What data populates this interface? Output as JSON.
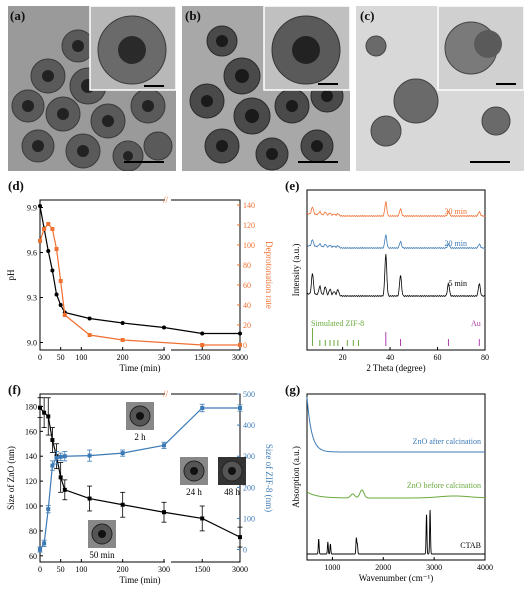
{
  "panel_labels": {
    "a": "(a)",
    "b": "(b)",
    "c": "(c)",
    "d": "(d)",
    "e": "(e)",
    "f": "(f)",
    "g": "(g)"
  },
  "chart_data": [
    {
      "id": "d",
      "type": "line",
      "xlabel": "Time (min)",
      "ylabel": "pH",
      "y2label": "Deprotonation rate",
      "xticks": [
        "0",
        "50",
        "100",
        "200",
        "300",
        "1500",
        "3000"
      ],
      "yticks": [
        "9.0",
        "9.3",
        "9.6",
        "9.9"
      ],
      "y2ticks": [
        "0",
        "20",
        "40",
        "60",
        "80",
        "100",
        "120",
        "140"
      ],
      "series": [
        {
          "axis": "left",
          "color": "#000000",
          "x": [
            0,
            10,
            20,
            30,
            40,
            50,
            60,
            120,
            200,
            300,
            1500,
            3000
          ],
          "y": [
            9.91,
            9.76,
            9.61,
            9.48,
            9.32,
            9.25,
            9.2,
            9.16,
            9.13,
            9.1,
            9.06,
            9.06
          ]
        },
        {
          "axis": "right",
          "color": "#f07030",
          "x": [
            0,
            10,
            20,
            30,
            40,
            50,
            60,
            120,
            200,
            1500,
            3000
          ],
          "y": [
            104,
            116,
            121,
            116,
            96,
            64,
            30,
            10,
            5,
            0,
            0
          ]
        }
      ]
    },
    {
      "id": "e",
      "type": "line",
      "xlabel": "2 Theta (degree)",
      "ylabel": "Intensity (a.u.)",
      "xticks": [
        "20",
        "40",
        "60",
        "80"
      ],
      "xlim": [
        5,
        80
      ],
      "series": [
        {
          "name": "30 min",
          "color": "#f07030"
        },
        {
          "name": "20 min",
          "color": "#3c7ab5"
        },
        {
          "name": "5 min",
          "color": "#000000"
        },
        {
          "name": "Simulated ZIF-8",
          "color": "#6aaa3c"
        },
        {
          "name": "Au",
          "color": "#b040b0"
        }
      ]
    },
    {
      "id": "f",
      "type": "line",
      "xlabel": "Time (min)",
      "ylabel": "Size of ZnO (nm)",
      "y2label": "Size of ZIF-8 (nm)",
      "xticks": [
        "0",
        "50",
        "100",
        "200",
        "300",
        "1500",
        "3000"
      ],
      "yticks": [
        "60",
        "80",
        "100",
        "120",
        "140",
        "160",
        "180"
      ],
      "y2ticks": [
        "0",
        "100",
        "200",
        "300",
        "400",
        "500"
      ],
      "insets": [
        "2 h",
        "24 h",
        "48 h",
        "50 min"
      ],
      "series": [
        {
          "axis": "left",
          "color": "#000000",
          "x": [
            0,
            10,
            20,
            30,
            40,
            50,
            60,
            120,
            200,
            300,
            1500,
            3000
          ],
          "y": [
            179,
            175,
            172,
            153,
            140,
            123,
            113,
            106,
            101,
            95,
            90,
            75
          ],
          "err": [
            8,
            12,
            15,
            10,
            10,
            12,
            8,
            10,
            10,
            8,
            10,
            8
          ]
        },
        {
          "axis": "right",
          "color": "#3c7ab5",
          "x": [
            0,
            10,
            20,
            30,
            40,
            50,
            60,
            120,
            200,
            300,
            1500,
            3000
          ],
          "y": [
            0,
            20,
            130,
            270,
            295,
            298,
            300,
            302,
            310,
            335,
            455,
            455
          ],
          "err": [
            8,
            10,
            12,
            15,
            20,
            12,
            15,
            18,
            10,
            10,
            12,
            10
          ]
        }
      ]
    },
    {
      "id": "g",
      "type": "line",
      "xlabel": "Wavenumber (cm⁻¹)",
      "ylabel": "Absorption (a.u.)",
      "xticks": [
        "1000",
        "2000",
        "3000",
        "4000"
      ],
      "xlim": [
        500,
        4000
      ],
      "series": [
        {
          "name": "ZnO after calcination",
          "color": "#3c7ab5"
        },
        {
          "name": "ZnO before calcination",
          "color": "#6aaa3c"
        },
        {
          "name": "CTAB",
          "color": "#000000"
        }
      ]
    }
  ]
}
